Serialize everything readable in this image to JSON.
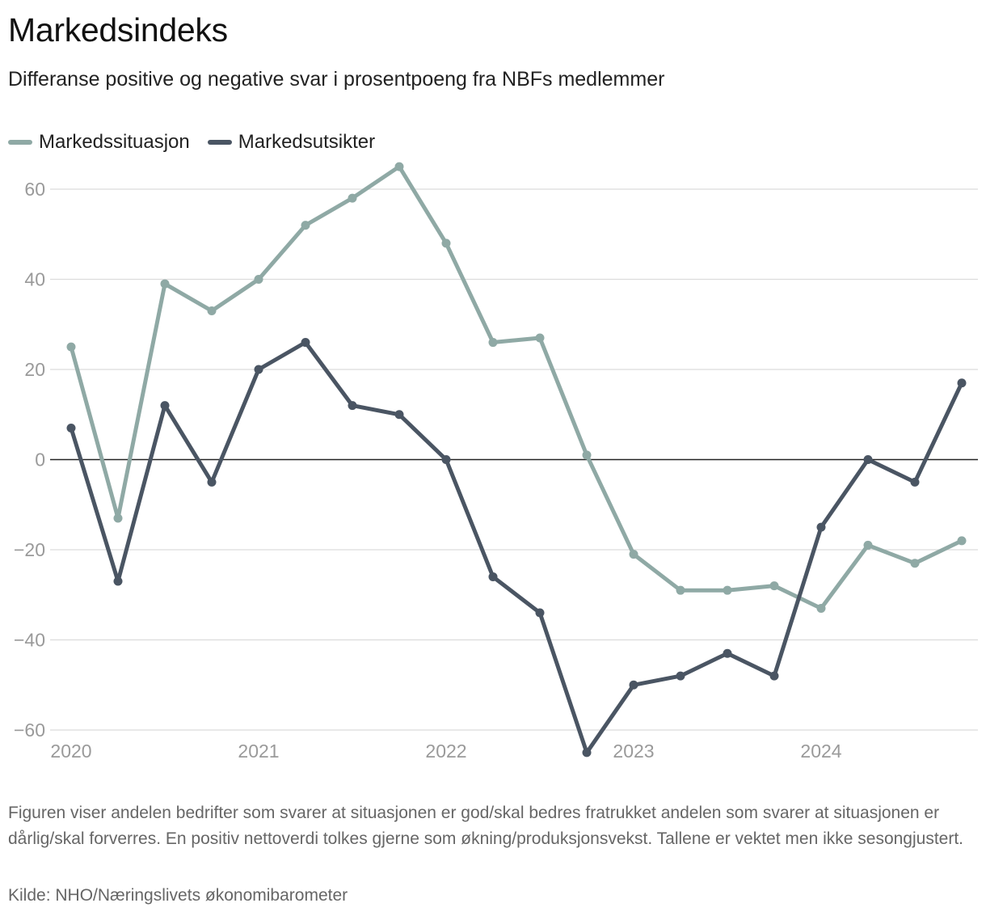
{
  "title": "Markedsindeks",
  "subtitle": "Differanse positive og negative svar i prosentpoeng fra NBFs medlemmer",
  "legend": [
    {
      "name": "Markedssituasjon",
      "color": "#8fa9a5"
    },
    {
      "name": "Markedsutsikter",
      "color": "#4a5563"
    }
  ],
  "note": "Figuren viser andelen bedrifter som svarer at situasjonen er god/skal bedres fratrukket andelen som svarer at situasjonen er dårlig/skal forverres. En positiv nettoverdi tolkes gjerne som økning/produksjonsvekst. Tallene er vektet men ikke sesongjustert.",
  "source": "Kilde: NHO/Næringslivets økonomibarometer",
  "chart_data": {
    "type": "line",
    "title": "Markedsindeks",
    "xlabel": "",
    "ylabel": "",
    "ylim": [
      -60,
      65
    ],
    "yticks": [
      60,
      40,
      20,
      0,
      -20,
      -40,
      -60
    ],
    "ytick_labels": [
      "60",
      "40",
      "20",
      "0",
      "−20",
      "−40",
      "−60"
    ],
    "xlim": [
      2020,
      2024.75
    ],
    "xticks": [
      2020,
      2021,
      2022,
      2023,
      2024
    ],
    "xtick_labels": [
      "2020",
      "2021",
      "2022",
      "2023",
      "2024"
    ],
    "x": [
      2020,
      2020.25,
      2020.5,
      2020.75,
      2021,
      2021.25,
      2021.5,
      2021.75,
      2022,
      2022.25,
      2022.5,
      2022.75,
      2023,
      2023.25,
      2023.5,
      2023.75,
      2024,
      2024.25,
      2024.5,
      2024.75
    ],
    "series": [
      {
        "name": "Markedssituasjon",
        "color": "#8fa9a5",
        "values": [
          25,
          -13,
          39,
          33,
          40,
          52,
          58,
          65,
          48,
          26,
          27,
          1,
          -21,
          -29,
          -29,
          -28,
          -33,
          -19,
          -23,
          -18
        ]
      },
      {
        "name": "Markedsutsikter",
        "color": "#4a5563",
        "values": [
          7,
          -27,
          12,
          -5,
          20,
          26,
          12,
          10,
          0,
          -26,
          -34,
          -65,
          -50,
          -48,
          -43,
          -48,
          -15,
          0,
          -5,
          17
        ]
      }
    ]
  }
}
